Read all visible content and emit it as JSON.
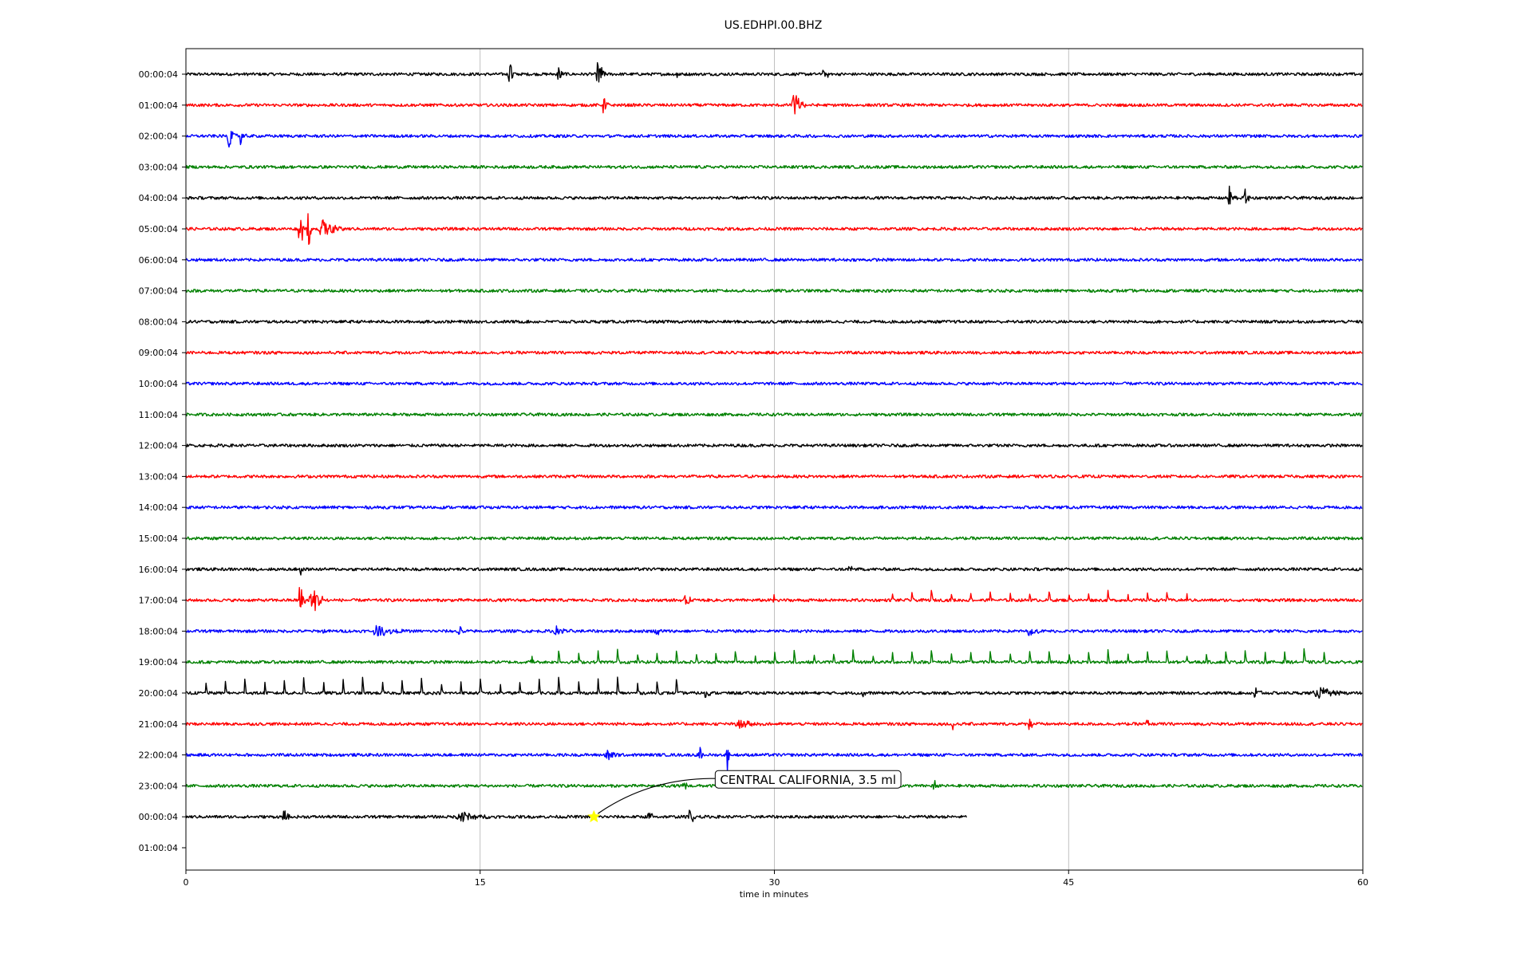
{
  "chart_data": {
    "type": "line",
    "title": "US.EDHPI.00.BHZ",
    "xlabel": "time in minutes",
    "ylabel": "",
    "xlim": [
      0,
      60
    ],
    "xticks": [
      0,
      15,
      30,
      45,
      60
    ],
    "grid": "vertical",
    "row_labels": [
      "00:00:04",
      "01:00:04",
      "02:00:04",
      "03:00:04",
      "04:00:04",
      "05:00:04",
      "06:00:04",
      "07:00:04",
      "08:00:04",
      "09:00:04",
      "10:00:04",
      "11:00:04",
      "12:00:04",
      "13:00:04",
      "14:00:04",
      "15:00:04",
      "16:00:04",
      "17:00:04",
      "18:00:04",
      "19:00:04",
      "20:00:04",
      "21:00:04",
      "22:00:04",
      "23:00:04",
      "00:00:04",
      "01:00:04"
    ],
    "colors": [
      "#000000",
      "#ff0000",
      "#0000ff",
      "#008000"
    ],
    "series": [
      {
        "end": 60,
        "bursts": [
          [
            16.5,
            0.9,
            0.3
          ],
          [
            19.0,
            0.5,
            0.4
          ],
          [
            21.0,
            1.2,
            0.4
          ],
          [
            25,
            0.4,
            0.2
          ],
          [
            32.5,
            0.3,
            0.6
          ]
        ]
      },
      {
        "end": 60,
        "bursts": [
          [
            21.3,
            0.6,
            0.3
          ],
          [
            31.0,
            0.8,
            0.6
          ]
        ]
      },
      {
        "end": 60,
        "bursts": [
          [
            2.2,
            0.7,
            0.4
          ],
          [
            2.8,
            0.5,
            0.3
          ]
        ]
      },
      {
        "end": 60,
        "bursts": []
      },
      {
        "end": 60,
        "bursts": [
          [
            53.2,
            0.6,
            0.4
          ],
          [
            54,
            0.4,
            0.4
          ]
        ]
      },
      {
        "end": 60,
        "bursts": [
          [
            5.8,
            1.6,
            0.3
          ],
          [
            6.2,
            2.4,
            0.2
          ],
          [
            7.0,
            0.5,
            1.2
          ]
        ]
      },
      {
        "end": 60,
        "bursts": []
      },
      {
        "end": 60,
        "bursts": []
      },
      {
        "end": 60,
        "bursts": []
      },
      {
        "end": 60,
        "bursts": []
      },
      {
        "end": 60,
        "bursts": []
      },
      {
        "end": 60,
        "bursts": []
      },
      {
        "end": 60,
        "bursts": []
      },
      {
        "end": 60,
        "bursts": []
      },
      {
        "end": 60,
        "bursts": []
      },
      {
        "end": 60,
        "bursts": []
      },
      {
        "end": 60,
        "bursts": [
          [
            5.8,
            1.3,
            0.2
          ],
          [
            33.8,
            0.3,
            0.3
          ]
        ]
      },
      {
        "end": 60,
        "bursts": [
          [
            5.8,
            2.0,
            0.3
          ],
          [
            6.5,
            0.6,
            1.2
          ],
          [
            25.5,
            0.3,
            0.5
          ],
          [
            30,
            0.3,
            0.4
          ]
        ],
        "spikes": {
          "start": 36,
          "step": 1,
          "count": 16,
          "amp": 0.45
        }
      },
      {
        "end": 60,
        "bursts": [
          [
            6.9,
            0.5,
            0.2
          ],
          [
            9.8,
            0.3,
            1.5
          ],
          [
            13.9,
            0.3,
            0.6
          ],
          [
            18.9,
            0.3,
            0.8
          ],
          [
            24,
            0.3,
            0.5
          ],
          [
            43,
            0.3,
            0.6
          ]
        ]
      },
      {
        "end": 60,
        "bursts": [
          [
            17.6,
            0.4,
            0.3
          ]
        ],
        "spikes": {
          "start": 19,
          "step": 1,
          "count": 40,
          "amp": 0.6
        }
      },
      {
        "end": 60,
        "bursts": [
          [
            26.5,
            0.4,
            0.3
          ],
          [
            34.5,
            0.3,
            0.3
          ],
          [
            54.5,
            0.6,
            0.4
          ],
          [
            57.8,
            0.3,
            1.5
          ]
        ],
        "spikes": {
          "start": 1,
          "step": 1,
          "count": 25,
          "amp": 0.75
        }
      },
      {
        "end": 60,
        "bursts": [
          [
            28.2,
            0.3,
            1.3
          ],
          [
            39.1,
            0.4,
            0.3
          ],
          [
            43,
            0.3,
            0.4
          ],
          [
            49,
            0.3,
            0.3
          ]
        ]
      },
      {
        "end": 60,
        "bursts": [
          [
            21.5,
            0.5,
            0.6
          ],
          [
            26.2,
            0.4,
            0.4
          ],
          [
            27.6,
            0.8,
            0.2
          ]
        ]
      },
      {
        "end": 60,
        "bursts": [
          [
            25.4,
            0.4,
            0.3
          ],
          [
            38.1,
            0.5,
            0.3
          ]
        ]
      },
      {
        "end": 39.8,
        "bursts": [
          [
            5,
            0.3,
            0.5
          ],
          [
            14.1,
            0.3,
            1.6
          ],
          [
            23.6,
            0.3,
            0.5
          ],
          [
            25.7,
            0.4,
            0.6
          ]
        ]
      },
      {
        "end": 0,
        "bursts": []
      }
    ],
    "event": {
      "minute": 20.8,
      "row": 24,
      "label": "CENTRAL CALIFORNIA, 3.5 ml"
    }
  }
}
